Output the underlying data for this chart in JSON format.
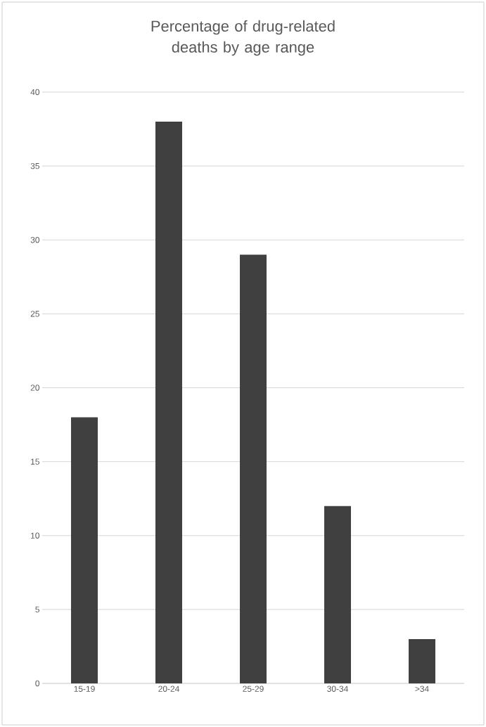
{
  "chart_data": {
    "type": "bar",
    "title": "Percentage of drug-related deaths by age range",
    "categories": [
      "15-19",
      "20-24",
      "25-29",
      "30-34",
      ">34"
    ],
    "values": [
      18,
      38,
      29,
      12,
      3
    ],
    "color": "#404040",
    "ylim": [
      0,
      40
    ],
    "yticks": [
      0,
      5,
      10,
      15,
      20,
      25,
      30,
      35,
      40
    ],
    "grid": "y"
  }
}
